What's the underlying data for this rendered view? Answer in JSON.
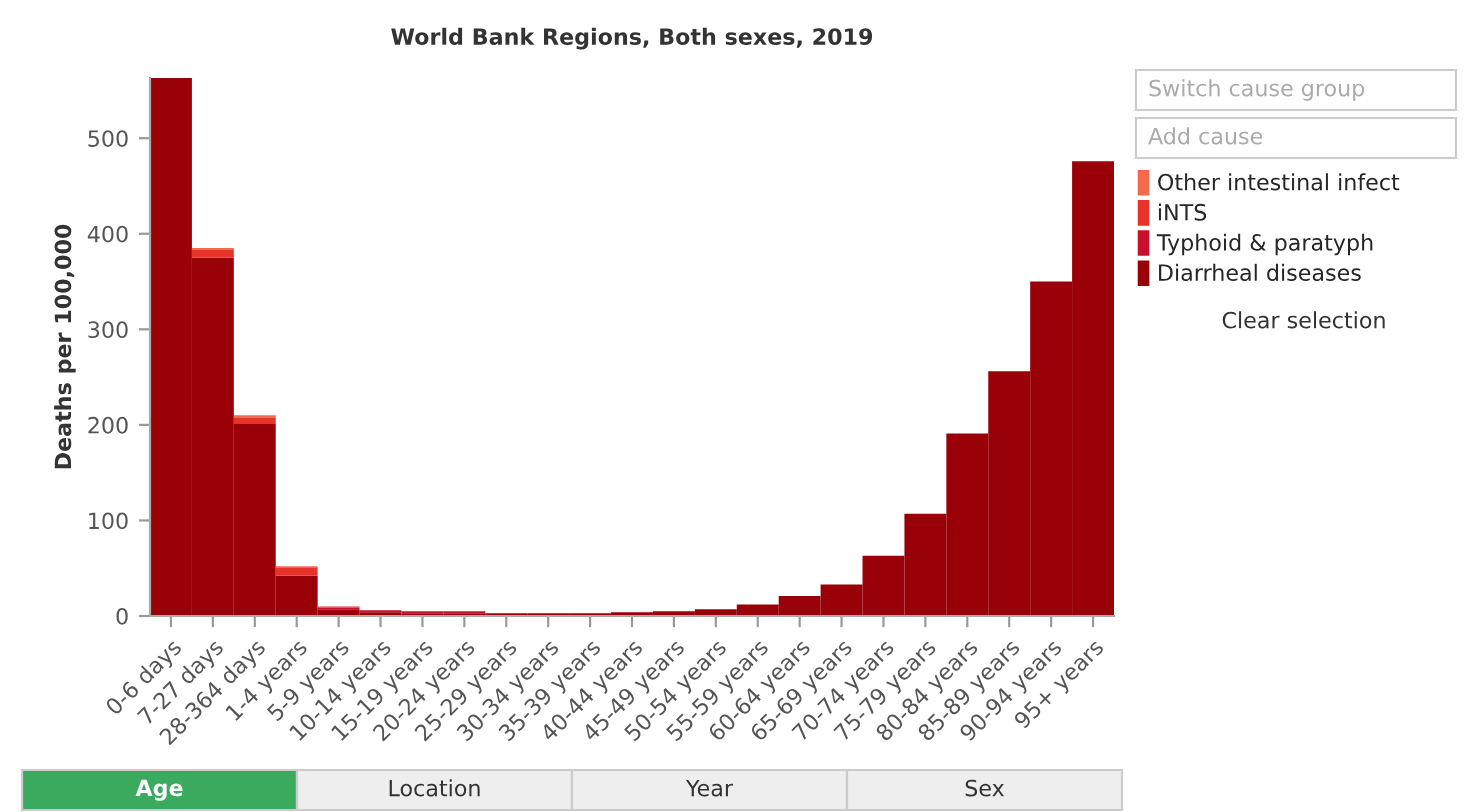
{
  "chart_data": {
    "type": "bar",
    "stacked": true,
    "title": "World Bank Regions, Both sexes, 2019",
    "ylabel": "Deaths per 100,000",
    "categories": [
      "0-6 days",
      "7-27 days",
      "28-364 days",
      "1-4 years",
      "5-9 years",
      "10-14 years",
      "15-19 years",
      "20-24 years",
      "25-29 years",
      "30-34 years",
      "35-39 years",
      "40-44 years",
      "45-49 years",
      "50-54 years",
      "55-59 years",
      "60-64 years",
      "65-69 years",
      "70-74 years",
      "75-79 years",
      "80-84 years",
      "85-89 years",
      "90-94 years",
      "95+ years"
    ],
    "series": [
      {
        "name": "Diarrheal diseases",
        "color": "#990008",
        "values": [
          563,
          375,
          201,
          42,
          7,
          4,
          3,
          3,
          3,
          3,
          3,
          4,
          5,
          7,
          12,
          21,
          33,
          63,
          107,
          191,
          256,
          350,
          476
        ]
      },
      {
        "name": "Typhoid & paratyph",
        "color": "#c8102e",
        "values": [
          0,
          0,
          0,
          0,
          2,
          2,
          2,
          2,
          0,
          0,
          0,
          0,
          0,
          0,
          0,
          0,
          0,
          0,
          0,
          0,
          0,
          0,
          0
        ]
      },
      {
        "name": "iNTS",
        "color": "#e8332a",
        "values": [
          0,
          8,
          7,
          9,
          1,
          0,
          0,
          0,
          0,
          0,
          0,
          0,
          0,
          0,
          0,
          0,
          0,
          0,
          0,
          0,
          0,
          0,
          0
        ]
      },
      {
        "name": "Other intestinal infect",
        "color": "#f26b4c",
        "values": [
          0,
          2,
          2,
          1,
          0,
          0,
          0,
          0,
          0,
          0,
          0,
          0,
          0,
          0,
          0,
          0,
          0,
          0,
          0,
          0,
          0,
          0,
          0
        ]
      }
    ],
    "ylim": [
      0,
      563
    ],
    "yticks": [
      0,
      100,
      200,
      300,
      400,
      500
    ],
    "grid": false,
    "legend": "top right",
    "annotations": [
      "Switch cause group",
      "Add cause",
      "Clear selection",
      "Age",
      "Location",
      "Year",
      "Sex"
    ]
  }
}
